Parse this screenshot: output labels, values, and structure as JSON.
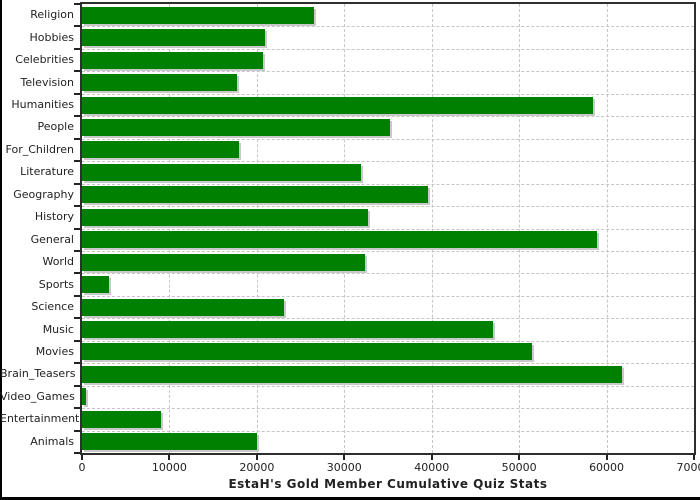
{
  "window": {
    "frame_color": "#000000",
    "background": "#ffffff"
  },
  "chart_data": {
    "type": "bar",
    "orientation": "horizontal",
    "title": "EstaH's Gold Member Cumulative Quiz Stats",
    "categories": [
      "Religion",
      "Hobbies",
      "Celebrities",
      "Television",
      "Humanities",
      "People",
      "For_Children",
      "Literature",
      "Geography",
      "History",
      "General",
      "World",
      "Sports",
      "Science",
      "Music",
      "Movies",
      "Brain_Teasers",
      "Video_Games",
      "Entertainment",
      "Animals"
    ],
    "values": [
      26500,
      20900,
      20700,
      17700,
      58400,
      35200,
      18000,
      31900,
      39600,
      32700,
      58900,
      32400,
      3100,
      23100,
      47000,
      51500,
      61800,
      450,
      9000,
      20000
    ],
    "xlabel": "",
    "ylabel": "",
    "xlim": [
      0,
      70000
    ],
    "x_ticks": [
      0,
      10000,
      20000,
      30000,
      40000,
      50000,
      60000,
      70000
    ],
    "grid": "dashed",
    "legend": "none",
    "bar_color": "#008000",
    "bar_shadow_color": "#c9c9c9",
    "gridline_color": "#c6c6c6",
    "axis_color": "#2e2e2e",
    "text_color": "#222222"
  }
}
